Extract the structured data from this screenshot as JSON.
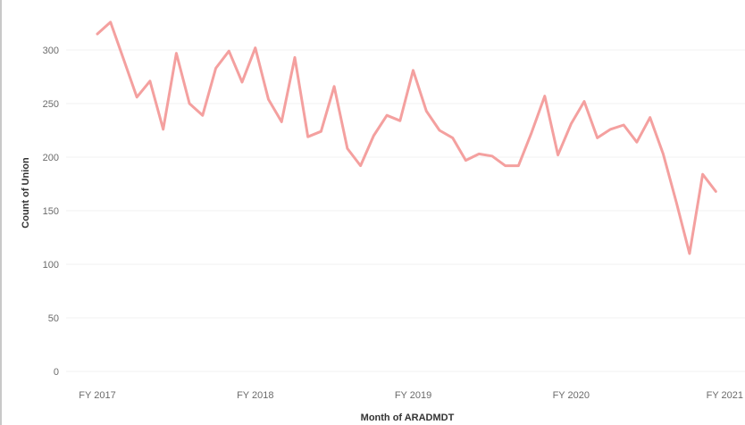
{
  "chart_data": {
    "type": "line",
    "xlabel": "Month of ARADMDT",
    "ylabel": "Count of Union",
    "ylim": [
      0,
      330
    ],
    "y_ticks": [
      0,
      50,
      100,
      150,
      200,
      250,
      300
    ],
    "x_ticks": [
      {
        "label": "FY 2017",
        "index": 0
      },
      {
        "label": "FY 2018",
        "index": 12
      },
      {
        "label": "FY 2019",
        "index": 24
      },
      {
        "label": "FY 2020",
        "index": 36
      },
      {
        "label": "FY 2021",
        "index": 48
      }
    ],
    "grid": true,
    "line_color": "#f4a09f",
    "series": [
      {
        "values": [
          315,
          326,
          291,
          256,
          271,
          226,
          297,
          250,
          239,
          283,
          299,
          270,
          302,
          254,
          233,
          293,
          219,
          224,
          266,
          208,
          192,
          220,
          239,
          234,
          281,
          243,
          225,
          218,
          197,
          203,
          201,
          192,
          192,
          223,
          257,
          202,
          231,
          252,
          218,
          226,
          230,
          214,
          237,
          203,
          158,
          110,
          184,
          168
        ]
      }
    ]
  }
}
